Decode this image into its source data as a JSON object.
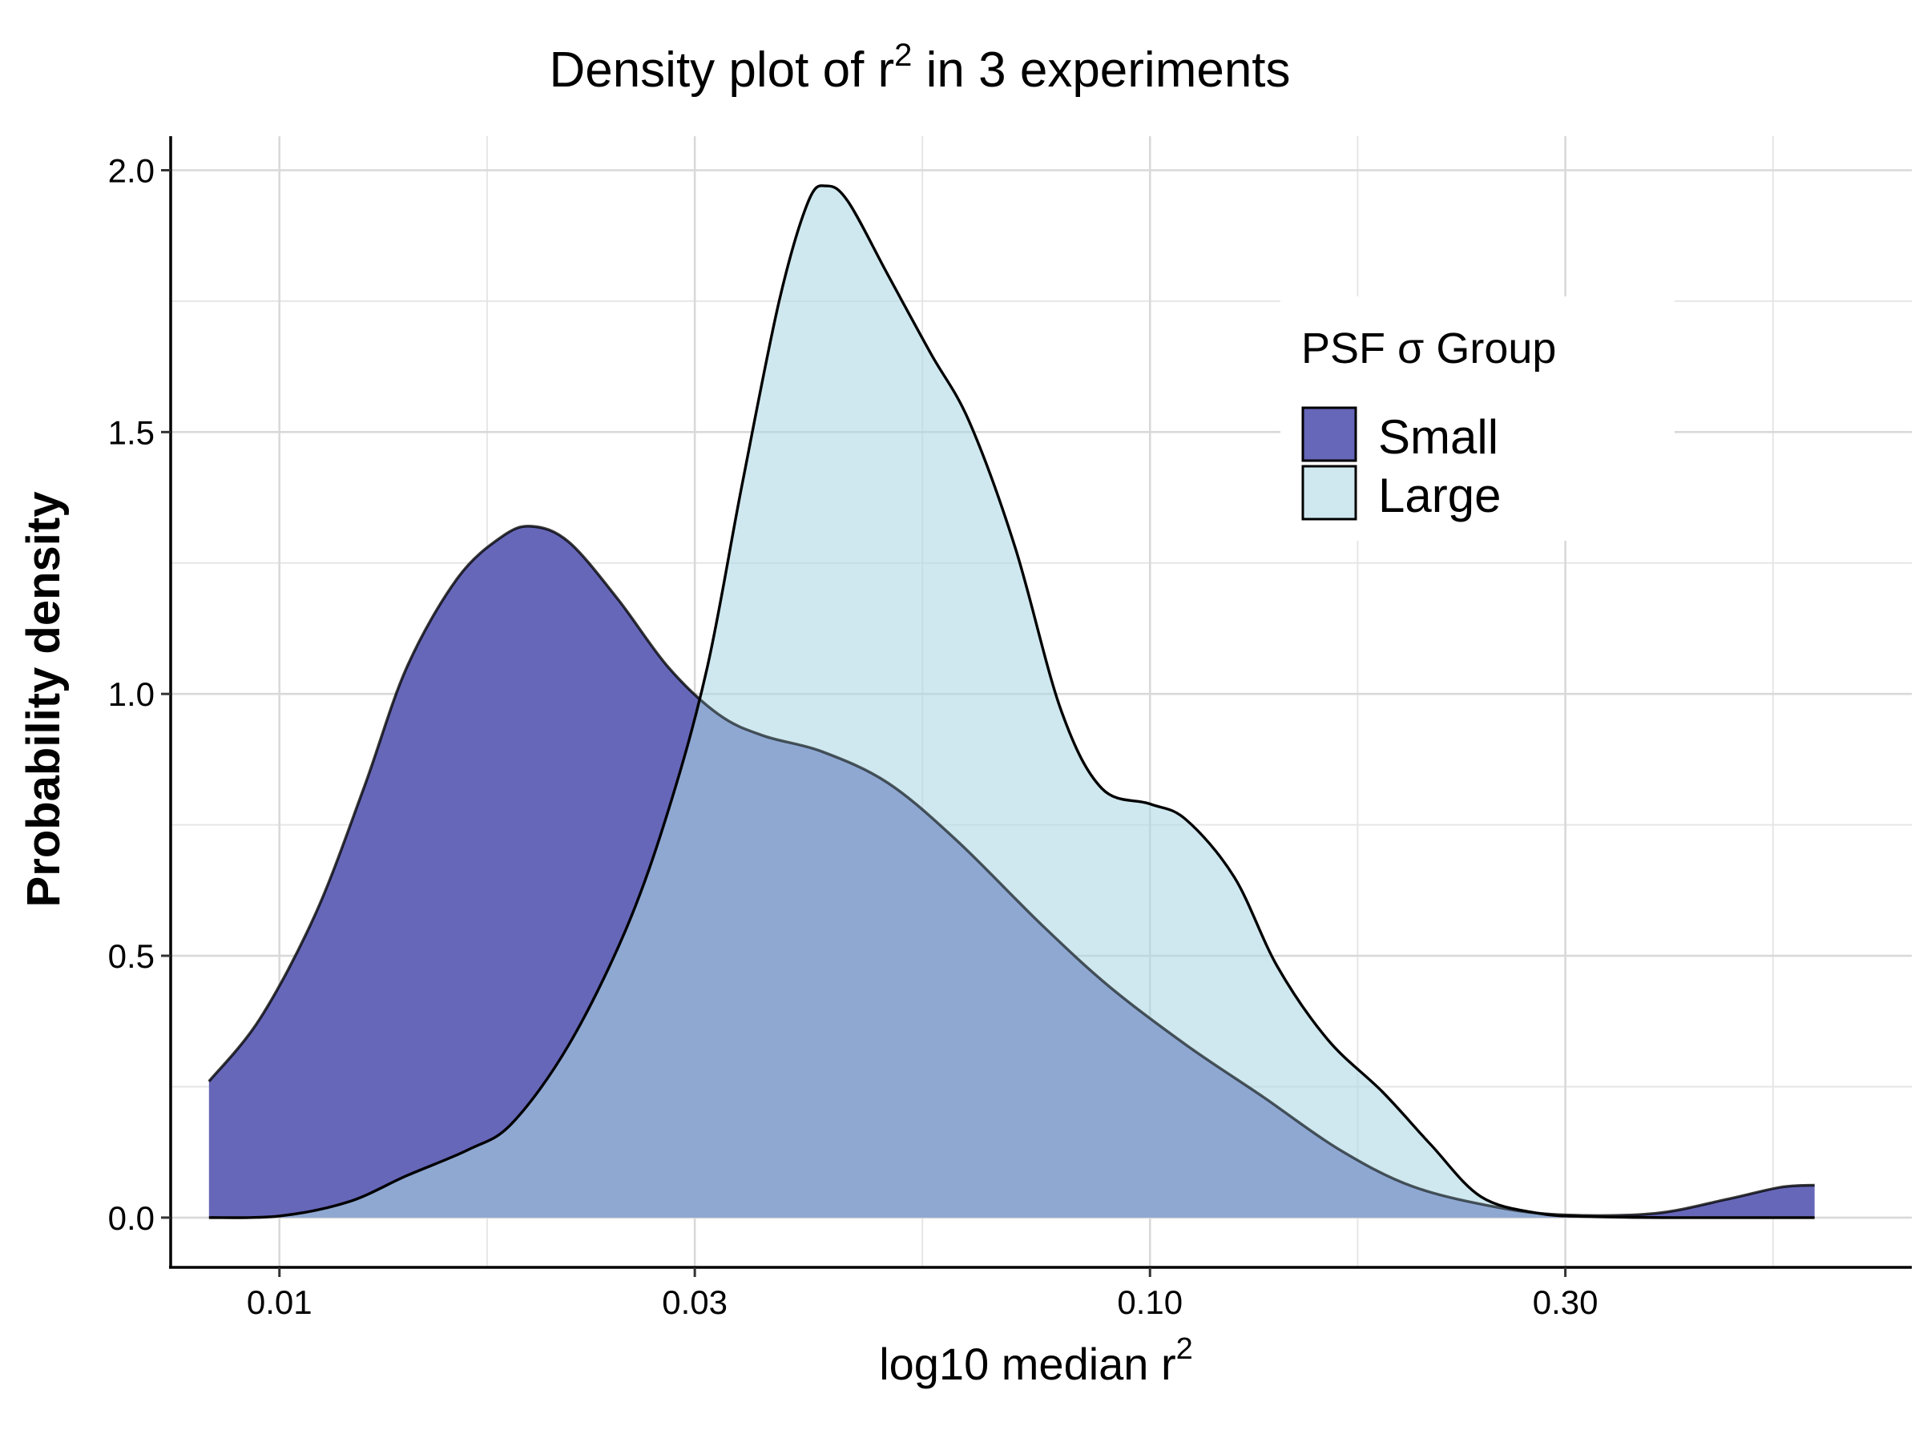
{
  "chart_data": {
    "type": "area",
    "title": "Density plot of r",
    "title_superscript": "2",
    "title_suffix": " in 3 experiments",
    "xlabel": "log10 median r",
    "xlabel_superscript": "2",
    "ylabel": "Probability density",
    "x_scale": "log10",
    "xlim": [
      0.0075,
      0.75
    ],
    "ylim": [
      -0.095,
      2.065
    ],
    "x_ticks": [
      0.01,
      0.03,
      0.1,
      0.3
    ],
    "x_tick_labels": [
      "0.01",
      "0.03",
      "0.10",
      "0.30"
    ],
    "y_ticks": [
      0.0,
      0.5,
      1.0,
      1.5,
      2.0
    ],
    "y_tick_labels": [
      "0.0",
      "0.5",
      "1.0",
      "1.5",
      "2.0"
    ],
    "grid": true,
    "legend": {
      "title": "PSF σ Group",
      "position": "top-right",
      "entries": [
        "Small",
        "Large"
      ]
    },
    "series": [
      {
        "name": "Small",
        "color": "#6667b8",
        "opacity": 1.0,
        "points": [
          [
            0.0083,
            0.26
          ],
          [
            0.0095,
            0.38
          ],
          [
            0.011,
            0.58
          ],
          [
            0.0125,
            0.82
          ],
          [
            0.014,
            1.05
          ],
          [
            0.016,
            1.22
          ],
          [
            0.018,
            1.3
          ],
          [
            0.0195,
            1.32
          ],
          [
            0.0215,
            1.29
          ],
          [
            0.0245,
            1.18
          ],
          [
            0.028,
            1.05
          ],
          [
            0.032,
            0.96
          ],
          [
            0.036,
            0.92
          ],
          [
            0.042,
            0.89
          ],
          [
            0.05,
            0.83
          ],
          [
            0.06,
            0.72
          ],
          [
            0.075,
            0.56
          ],
          [
            0.09,
            0.44
          ],
          [
            0.11,
            0.33
          ],
          [
            0.135,
            0.23
          ],
          [
            0.165,
            0.13
          ],
          [
            0.2,
            0.06
          ],
          [
            0.25,
            0.02
          ],
          [
            0.3,
            0.005
          ],
          [
            0.38,
            0.008
          ],
          [
            0.46,
            0.035
          ],
          [
            0.53,
            0.058
          ],
          [
            0.58,
            0.062
          ]
        ]
      },
      {
        "name": "Large",
        "color": "#add8e6",
        "opacity": 0.58,
        "points": [
          [
            0.0083,
            0.0
          ],
          [
            0.01,
            0.003
          ],
          [
            0.012,
            0.03
          ],
          [
            0.014,
            0.08
          ],
          [
            0.0165,
            0.13
          ],
          [
            0.0185,
            0.18
          ],
          [
            0.0215,
            0.33
          ],
          [
            0.025,
            0.55
          ],
          [
            0.028,
            0.78
          ],
          [
            0.031,
            1.05
          ],
          [
            0.034,
            1.4
          ],
          [
            0.0375,
            1.75
          ],
          [
            0.0405,
            1.94
          ],
          [
            0.0425,
            1.97
          ],
          [
            0.045,
            1.94
          ],
          [
            0.05,
            1.8
          ],
          [
            0.056,
            1.65
          ],
          [
            0.062,
            1.52
          ],
          [
            0.07,
            1.28
          ],
          [
            0.079,
            0.97
          ],
          [
            0.088,
            0.82
          ],
          [
            0.1,
            0.79
          ],
          [
            0.11,
            0.76
          ],
          [
            0.125,
            0.65
          ],
          [
            0.14,
            0.48
          ],
          [
            0.16,
            0.34
          ],
          [
            0.185,
            0.24
          ],
          [
            0.21,
            0.14
          ],
          [
            0.24,
            0.04
          ],
          [
            0.28,
            0.008
          ],
          [
            0.32,
            0.002
          ],
          [
            0.4,
            0.0
          ],
          [
            0.58,
            0.0
          ]
        ]
      }
    ]
  }
}
